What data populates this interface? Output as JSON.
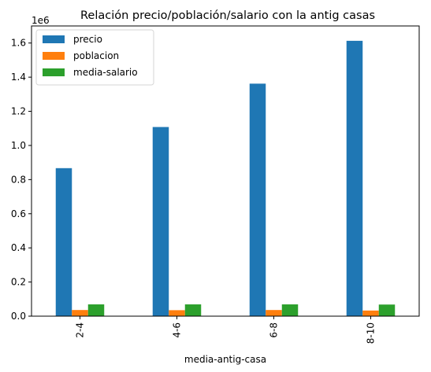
{
  "chart_data": {
    "type": "bar",
    "title": "Relación precio/población/salario con la antig casas",
    "xlabel": "media-antig-casa",
    "ylabel": "",
    "scale_label": "1e6",
    "categories": [
      "2-4",
      "4-6",
      "6-8",
      "8-10"
    ],
    "ylim": [
      0,
      1.7
    ],
    "yticks": [
      0.0,
      0.2,
      0.4,
      0.6,
      0.8,
      1.0,
      1.2,
      1.4,
      1.6
    ],
    "ytick_labels": [
      "0.0",
      "0.2",
      "0.4",
      "0.6",
      "0.8",
      "1.0",
      "1.2",
      "1.4",
      "1.6"
    ],
    "legend_position": "top-left",
    "series": [
      {
        "name": "precio",
        "color": "#1f77b4",
        "values": [
          0.867,
          1.108,
          1.362,
          1.613
        ]
      },
      {
        "name": "poblacion",
        "color": "#ff7f0e",
        "values": [
          0.036,
          0.035,
          0.036,
          0.033
        ]
      },
      {
        "name": "media-salario",
        "color": "#2ca02c",
        "values": [
          0.069,
          0.069,
          0.069,
          0.068
        ]
      }
    ]
  }
}
